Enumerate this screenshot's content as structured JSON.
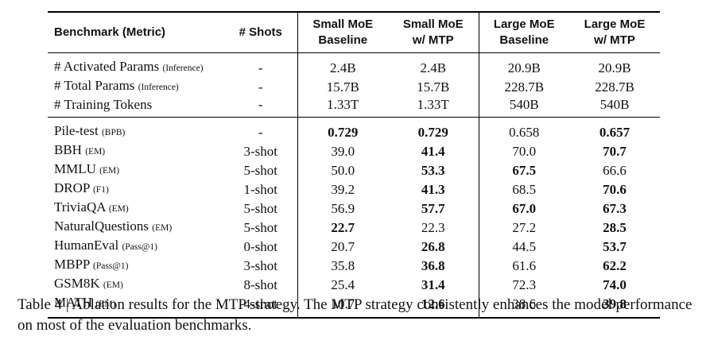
{
  "table": {
    "headers": {
      "benchmark": "Benchmark (Metric)",
      "shots": "# Shots",
      "small_base_line1": "Small MoE",
      "small_base_line2": "Baseline",
      "small_mtp_line1": "Small MoE",
      "small_mtp_line2": "w/ MTP",
      "large_base_line1": "Large MoE",
      "large_base_line2": "Baseline",
      "large_mtp_line1": "Large MoE",
      "large_mtp_line2": "w/ MTP"
    },
    "params_rows": [
      {
        "name": "# Activated Params",
        "metric": "(Inference)",
        "shots": "-",
        "v1": "2.4B",
        "v2": "2.4B",
        "v3": "20.9B",
        "v4": "20.9B"
      },
      {
        "name": "# Total Params",
        "metric": "(Inference)",
        "shots": "-",
        "v1": "15.7B",
        "v2": "15.7B",
        "v3": "228.7B",
        "v4": "228.7B"
      },
      {
        "name": "# Training Tokens",
        "metric": "",
        "shots": "-",
        "v1": "1.33T",
        "v2": "1.33T",
        "v3": "540B",
        "v4": "540B"
      }
    ],
    "bench_rows": [
      {
        "name": "Pile-test",
        "metric": "(BPB)",
        "shots": "-",
        "v1": "0.729",
        "v2": "0.729",
        "v3": "0.658",
        "v4": "0.657"
      },
      {
        "name": "BBH",
        "metric": "(EM)",
        "shots": "3-shot",
        "v1": "39.0",
        "v2": "41.4",
        "v3": "70.0",
        "v4": "70.7"
      },
      {
        "name": "MMLU",
        "metric": "(EM)",
        "shots": "5-shot",
        "v1": "50.0",
        "v2": "53.3",
        "v3": "67.5",
        "v4": "66.6"
      },
      {
        "name": "DROP",
        "metric": "(F1)",
        "shots": "1-shot",
        "v1": "39.2",
        "v2": "41.3",
        "v3": "68.5",
        "v4": "70.6"
      },
      {
        "name": "TriviaQA",
        "metric": "(EM)",
        "shots": "5-shot",
        "v1": "56.9",
        "v2": "57.7",
        "v3": "67.0",
        "v4": "67.3"
      },
      {
        "name": "NaturalQuestions",
        "metric": "(EM)",
        "shots": "5-shot",
        "v1": "22.7",
        "v2": "22.3",
        "v3": "27.2",
        "v4": "28.5"
      },
      {
        "name": "HumanEval",
        "metric": "(Pass@1)",
        "shots": "0-shot",
        "v1": "20.7",
        "v2": "26.8",
        "v3": "44.5",
        "v4": "53.7"
      },
      {
        "name": "MBPP",
        "metric": "(Pass@1)",
        "shots": "3-shot",
        "v1": "35.8",
        "v2": "36.8",
        "v3": "61.6",
        "v4": "62.2"
      },
      {
        "name": "GSM8K",
        "metric": "(EM)",
        "shots": "8-shot",
        "v1": "25.4",
        "v2": "31.4",
        "v3": "72.3",
        "v4": "74.0"
      },
      {
        "name": "MATH",
        "metric": "(EM)",
        "shots": "4-shot",
        "v1": "10.7",
        "v2": "12.6",
        "v3": "38.6",
        "v4": "39.8"
      }
    ]
  },
  "caption": {
    "text": "Table 4 | Ablation results for the MTP strategy. The MTP strategy consistently enhances the model performance on most of the evaluation benchmarks."
  }
}
